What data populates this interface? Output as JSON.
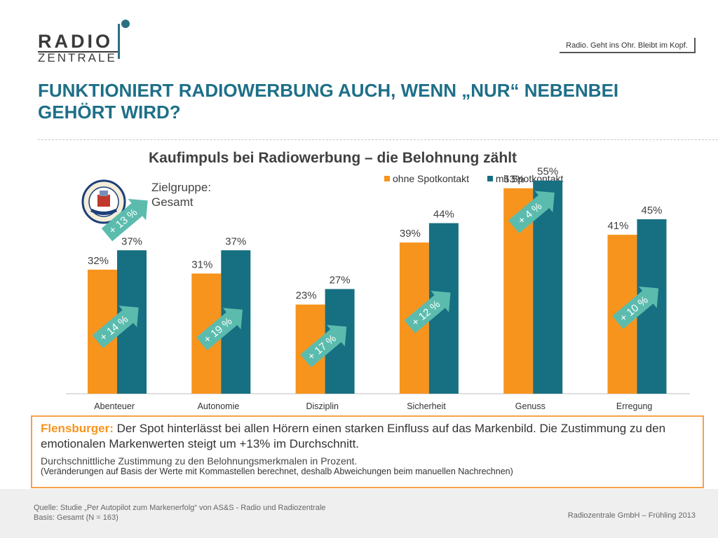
{
  "logo": {
    "line1": "RADIO",
    "line2": "ZENTRALE"
  },
  "slogan": "Radio. Geht ins Ohr. Bleibt im Kopf.",
  "headline": "FUNKTIONIERT RADIOWERBUNG AUCH, WENN „NUR“ NEBENBEI GEHÖRT WIRD?",
  "brand_logo_name": "flensburger-pilsener-seal",
  "target_group": {
    "line1": "Zielgruppe:",
    "line2": "Gesamt"
  },
  "colors": {
    "ohne": "#f7941d",
    "mit": "#176f82",
    "headline": "#1e6f88",
    "arrow": "#5bbcae"
  },
  "chart_data": {
    "type": "bar",
    "title": "Kaufimpuls bei Radiowerbung – die Belohnung zählt",
    "categories": [
      "Abenteuer",
      "Autonomie",
      "Disziplin",
      "Sicherheit",
      "Genuss",
      "Erregung"
    ],
    "series": [
      {
        "name": "ohne Spotkontakt",
        "values": [
          32,
          31,
          23,
          39,
          53,
          41
        ],
        "labels": [
          "32%",
          "31%",
          "23%",
          "39%",
          "53%",
          "41%"
        ]
      },
      {
        "name": "mit Spotkontakt",
        "values": [
          37,
          37,
          27,
          44,
          55,
          45
        ],
        "labels": [
          "37%",
          "37%",
          "27%",
          "44%",
          "55%",
          "45%"
        ]
      }
    ],
    "changes": [
      "+ 14 %",
      "+ 19 %",
      "+ 17 %",
      "+ 12 %",
      "+ 4 %",
      "+ 10 %"
    ],
    "overall_change": "+ 13 %",
    "ylim": [
      0,
      60
    ],
    "grid": false,
    "legend_position": "top-right"
  },
  "callout": {
    "lead": "Flensburger:",
    "text": " Der Spot hinterlässt bei allen Hörern einen starken Einfluss auf das Markenbild. Die Zustimmung zu den emotionalen Markenwerten steigt um +13% im Durchschnitt.",
    "sub": "Durchschnittliche Zustimmung zu den Belohnungsmerkmalen in Prozent.",
    "note": "(Veränderungen auf Basis der Werte mit Kommastellen berechnet, deshalb Abweichungen beim manuellen Nachrechnen)"
  },
  "footer": {
    "source_line1": "Quelle: Studie „Per Autopilot zum Markenerfolg“ von AS&S - Radio und Radiozentrale",
    "source_line2": "Basis: Gesamt (N = 163)",
    "company": "Radiozentrale GmbH –  Frühling  2013"
  }
}
